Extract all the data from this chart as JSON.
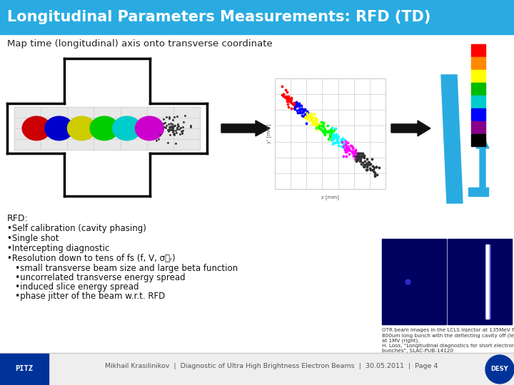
{
  "title": "Longitudinal Parameters Measurements: RFD (TD)",
  "title_bg": "#29ABE2",
  "title_color": "#FFFFFF",
  "subtitle": "Map time (longitudinal) axis onto transverse coordinate",
  "bg_color": "#FFFFFF",
  "footer_text": "Mikhail Krasilinikov  |  Diagnostic of Ultra High Brightness Electron Beams  |  30.05.2011  |  Page 4",
  "rfd_title": "RFD:",
  "rfd_bullets": [
    "•Self calibration (cavity phasing)",
    "•Single shot",
    "•Intercepting diagnostic",
    "•Resolution down to tens of fs (f, V, σᵯᵣ)"
  ],
  "rfd_sub_bullets": [
    "   •small transverse beam size and large beta function",
    "   •uncorrelated transverse energy spread",
    "   •induced slice energy spread",
    "   •phase jitter of the beam w.r.t. RFD"
  ],
  "caption_text": "OTR beam images in the LCLS injector at 135MeV for a\n800um long bunch with the deflecting cavity off (left) and on\nat 1MV (right).\nH. Loos, \"Longitudinal diagnostics for short electron beam\nbunches\", SLAC-PUB-14120",
  "cross_lw": 2.5,
  "cross_color": "#000000",
  "arrow_color": "#000000",
  "screen_color": "#29ABE2",
  "colorbar_colors": [
    "#FF0000",
    "#FF8800",
    "#FFFF00",
    "#00FF00",
    "#00CCCC",
    "#0000FF",
    "#880088",
    "#000000"
  ],
  "beam_stripe_colors": [
    "#CC0000",
    "#0000CC",
    "#CCCC00",
    "#00CC00",
    "#00CCCC",
    "#CC00CC",
    "#444444"
  ],
  "scatter_colors": [
    "#FF0000",
    "#0000FF",
    "#FFFF00",
    "#00FF00",
    "#00FFFF",
    "#FF00FF",
    "#000000"
  ],
  "otr_left_bg": "#000066",
  "otr_right_bg": "#000066"
}
